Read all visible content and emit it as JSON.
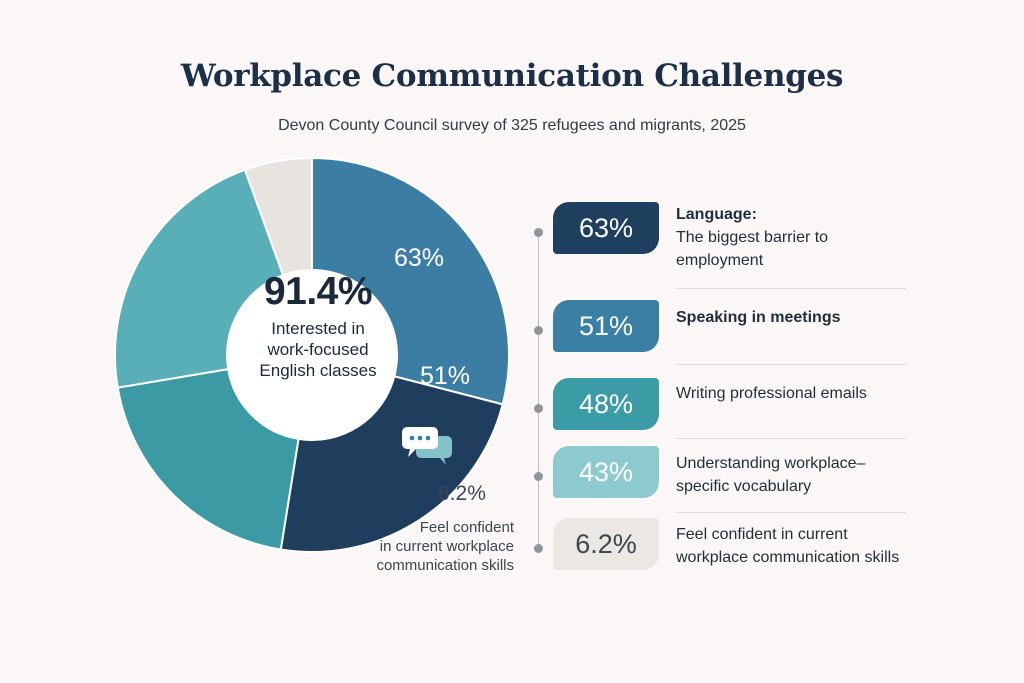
{
  "title": "Workplace Communication Challenges",
  "subtitle": "Devon County Council survey of 325 refugees and migrants, 2025",
  "center": {
    "value": "91.4%",
    "label_lines": [
      "Interested in",
      "work-focused",
      "English classes"
    ]
  },
  "chart_data": {
    "type": "pie",
    "title": "Workplace Communication Challenges",
    "subtitle": "Devon County Council survey of 325 refugees and migrants, 2025",
    "center_value": "91.4%",
    "center_label": "Interested in work-focused English classes",
    "segments": [
      {
        "label": "63%",
        "value": 63,
        "color": "#3c7ea3"
      },
      {
        "label": "51%",
        "value": 51,
        "color": "#1f3e5e"
      },
      {
        "label": "",
        "value": 43,
        "color": "#3b9aa4"
      },
      {
        "label": "",
        "value": 48,
        "color": "#58afb8"
      },
      {
        "label": "",
        "value": 12,
        "color": "#e7e4e0"
      }
    ],
    "outside_annotation": {
      "value": "6.2%",
      "label": "Feel confident in current workplace communication skills"
    }
  },
  "annotation": {
    "value": "6.2%",
    "label_lines": [
      "Feel confident",
      "in current workplace",
      "communication skills"
    ]
  },
  "legend_items": [
    {
      "value": "63%",
      "title": "Language:",
      "lines": [
        "The biggest barrier to",
        "employment"
      ],
      "bg": "#1f3f5f",
      "fg": "#ffffff"
    },
    {
      "value": "51%",
      "title": "Speaking in meetings",
      "lines": [],
      "bg": "#3a80a4",
      "fg": "#ffffff"
    },
    {
      "value": "48%",
      "title": "",
      "lines": [
        "Writing professional emails"
      ],
      "bg": "#3b9ca5",
      "fg": "#ffffff"
    },
    {
      "value": "43%",
      "title": "",
      "lines": [
        "Understanding workplace–",
        "specific vocabulary"
      ],
      "bg": "#8ccacd",
      "fg": "#ffffff"
    },
    {
      "value": "6.2%",
      "title": "",
      "lines": [
        "Feel confident in current",
        "workplace communication skills"
      ],
      "bg": "#ebe7e3",
      "fg": "#3d4650"
    }
  ],
  "icons": [
    "chat-bubbles-icon"
  ]
}
